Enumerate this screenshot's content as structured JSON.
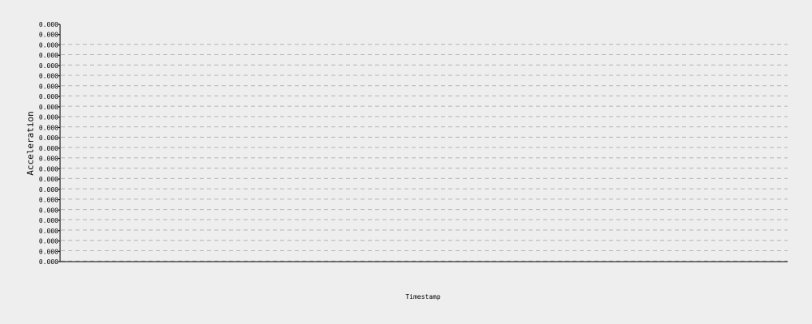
{
  "chart_data": {
    "type": "line",
    "title": "",
    "xlabel": "Timestamp",
    "ylabel": "Acceleration",
    "x": [],
    "series": [],
    "y_tick_labels": [
      "0.000",
      "0.000",
      "0.000",
      "0.000",
      "0.000",
      "0.000",
      "0.000",
      "0.000",
      "0.000",
      "0.000",
      "0.000",
      "0.000",
      "0.000",
      "0.000",
      "0.000",
      "0.000",
      "0.000",
      "0.000",
      "0.000",
      "0.000",
      "0.000",
      "0.000",
      "0.000",
      "0.000"
    ],
    "grid": true,
    "colors": {
      "background": "#eeeeee",
      "grid": "#b4b4b4",
      "axis": "#000000",
      "text": "#000000"
    }
  }
}
